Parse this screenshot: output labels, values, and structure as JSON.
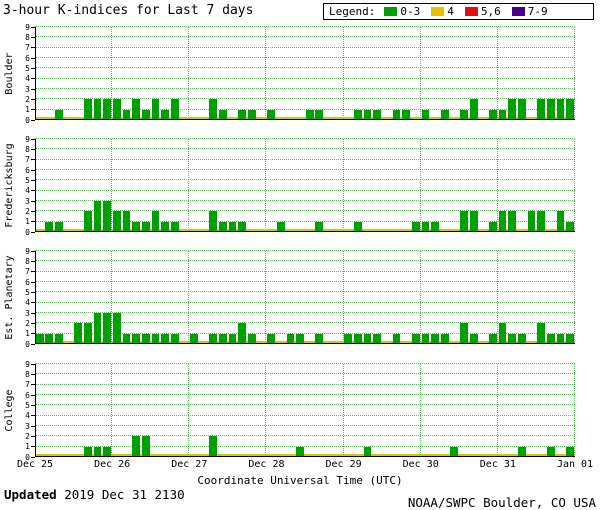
{
  "chart_data": {
    "type": "bar",
    "title": "3-hour K-indices for Last 7 days",
    "xlabel": "Coordinate Universal Time (UTC)",
    "x_tick_labels": [
      "Dec 25",
      "Dec 26",
      "Dec 27",
      "Dec 28",
      "Dec 29",
      "Dec 30",
      "Dec 31",
      "Jan 01"
    ],
    "ylim": [
      0,
      9
    ],
    "y_tick_labels": [
      "0",
      "1",
      "2",
      "3",
      "4",
      "5",
      "6",
      "7",
      "8",
      "9"
    ],
    "bars_per_day": 8,
    "days": 7,
    "grid": true,
    "legend_position": "top-right",
    "legend": {
      "label": "Legend:",
      "items": [
        {
          "label": "0-3",
          "color": "#00A000",
          "min": 0,
          "max": 3
        },
        {
          "label": "4",
          "color": "#E8C000",
          "min": 4,
          "max": 4
        },
        {
          "label": "5,6",
          "color": "#E01010",
          "min": 5,
          "max": 6
        },
        {
          "label": "7-9",
          "color": "#47008F",
          "min": 7,
          "max": 9
        }
      ]
    },
    "panels": [
      {
        "station": "Boulder",
        "values": [
          0,
          0,
          1,
          0,
          0,
          2,
          2,
          2,
          2,
          1,
          2,
          1,
          2,
          1,
          2,
          0,
          0,
          0,
          2,
          1,
          0,
          1,
          1,
          0,
          1,
          0,
          0,
          0,
          1,
          1,
          0,
          0,
          0,
          1,
          1,
          1,
          0,
          1,
          1,
          0,
          1,
          0,
          1,
          0,
          1,
          2,
          0,
          1,
          1,
          2,
          2,
          0,
          2,
          2,
          2,
          2
        ]
      },
      {
        "station": "Fredericksburg",
        "values": [
          0,
          1,
          1,
          0,
          0,
          2,
          3,
          3,
          2,
          2,
          1,
          1,
          2,
          1,
          1,
          0,
          0,
          0,
          2,
          1,
          1,
          1,
          0,
          0,
          0,
          1,
          0,
          0,
          0,
          1,
          0,
          0,
          0,
          1,
          0,
          0,
          0,
          0,
          0,
          1,
          1,
          1,
          0,
          0,
          2,
          2,
          0,
          1,
          2,
          2,
          0,
          2,
          2,
          0,
          2,
          1
        ]
      },
      {
        "station": "Est. Planetary",
        "values": [
          1,
          1,
          1,
          0,
          2,
          2,
          3,
          3,
          3,
          1,
          1,
          1,
          1,
          1,
          1,
          0,
          1,
          0,
          1,
          1,
          1,
          2,
          1,
          0,
          1,
          0,
          1,
          1,
          0,
          1,
          0,
          0,
          1,
          1,
          1,
          1,
          0,
          1,
          0,
          1,
          1,
          1,
          1,
          0,
          2,
          1,
          0,
          1,
          2,
          1,
          1,
          0,
          2,
          1,
          1,
          1
        ]
      },
      {
        "station": "College",
        "values": [
          0,
          0,
          0,
          0,
          0,
          1,
          1,
          1,
          0,
          0,
          2,
          2,
          0,
          0,
          0,
          0,
          0,
          0,
          2,
          0,
          0,
          0,
          0,
          0,
          0,
          0,
          0,
          1,
          0,
          0,
          0,
          0,
          0,
          0,
          1,
          0,
          0,
          0,
          0,
          0,
          0,
          0,
          0,
          1,
          0,
          0,
          0,
          0,
          0,
          0,
          1,
          0,
          0,
          1,
          0,
          1
        ]
      }
    ]
  },
  "footer": {
    "updated_label": "Updated",
    "updated_value": "2019 Dec 31 2130",
    "credit": "NOAA/SWPC Boulder, CO USA"
  },
  "colors": {
    "bar_green": "#00A000",
    "grid_green": "#00A000",
    "baseline_yellow": "#CCCC00",
    "axis": "#000000",
    "background": "#FFFFFF"
  }
}
